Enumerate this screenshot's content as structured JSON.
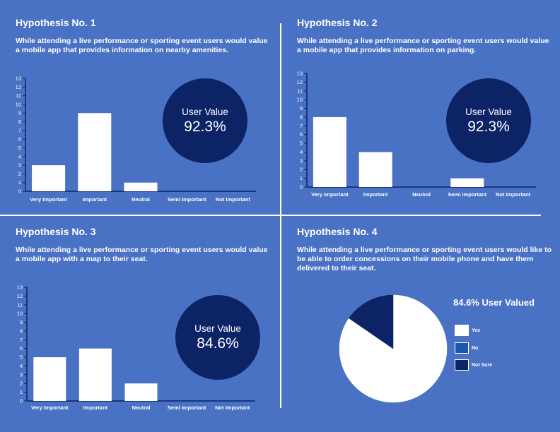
{
  "hypotheses": [
    {
      "title": "Hypothesis No. 1",
      "description": "While attending a live performance or sporting event users would value a mobile app that provides information on nearby amenities.",
      "value_label": "User Value",
      "value": "92.3%"
    },
    {
      "title": "Hypothesis No. 2",
      "description": "While attending a live performance or sporting event users would value a mobile app that provides information on parking.",
      "value_label": "User Value",
      "value": "92.3%"
    },
    {
      "title": "Hypothesis No. 3",
      "description": "While attending a live performance or sporting event users would value a mobile app with a map to their seat.",
      "value_label": "User Value",
      "value": "84.6%"
    },
    {
      "title": "Hypothesis No. 4",
      "description": "While attending a live performance or sporting event users would like to be able to order concessions on their mobile phone and have them delivered to their seat.",
      "pie_title": "84.6% User Valued"
    }
  ],
  "chart_data": [
    {
      "type": "bar",
      "categories": [
        "Very Important",
        "Important",
        "Neutral",
        "Semi Important",
        "Not Important"
      ],
      "values": [
        3,
        9,
        1,
        0,
        0
      ],
      "ylim": [
        0,
        13
      ],
      "yticks": [
        0,
        1,
        2,
        3,
        4,
        5,
        6,
        7,
        8,
        9,
        10,
        11,
        12,
        13
      ],
      "grid": false,
      "bar_color": "#ffffff"
    },
    {
      "type": "bar",
      "categories": [
        "Very Important",
        "Important",
        "Neutral",
        "Semi Important",
        "Not Important"
      ],
      "values": [
        8,
        4,
        0,
        1,
        0
      ],
      "ylim": [
        0,
        13
      ],
      "yticks": [
        0,
        1,
        2,
        3,
        4,
        5,
        6,
        7,
        8,
        9,
        10,
        11,
        12,
        13
      ],
      "grid": false,
      "bar_color": "#ffffff"
    },
    {
      "type": "bar",
      "categories": [
        "Very Important",
        "Important",
        "Neutral",
        "Semi Important",
        "Not Important"
      ],
      "values": [
        5,
        6,
        2,
        0,
        0
      ],
      "ylim": [
        0,
        13
      ],
      "yticks": [
        0,
        1,
        2,
        3,
        4,
        5,
        6,
        7,
        8,
        9,
        10,
        11,
        12,
        13
      ],
      "grid": false,
      "bar_color": "#ffffff"
    },
    {
      "type": "pie",
      "labels": [
        "Yes",
        "No",
        "Not Sure"
      ],
      "values": [
        84.6,
        0,
        15.4
      ],
      "colors": [
        "#ffffff",
        "#1f57b0",
        "#0c2366"
      ],
      "legend_position": "right"
    }
  ],
  "colors": {
    "background": "#4a72c4",
    "bubble": "#0c2366",
    "bar": "#ffffff",
    "axis": "#0c2366"
  }
}
